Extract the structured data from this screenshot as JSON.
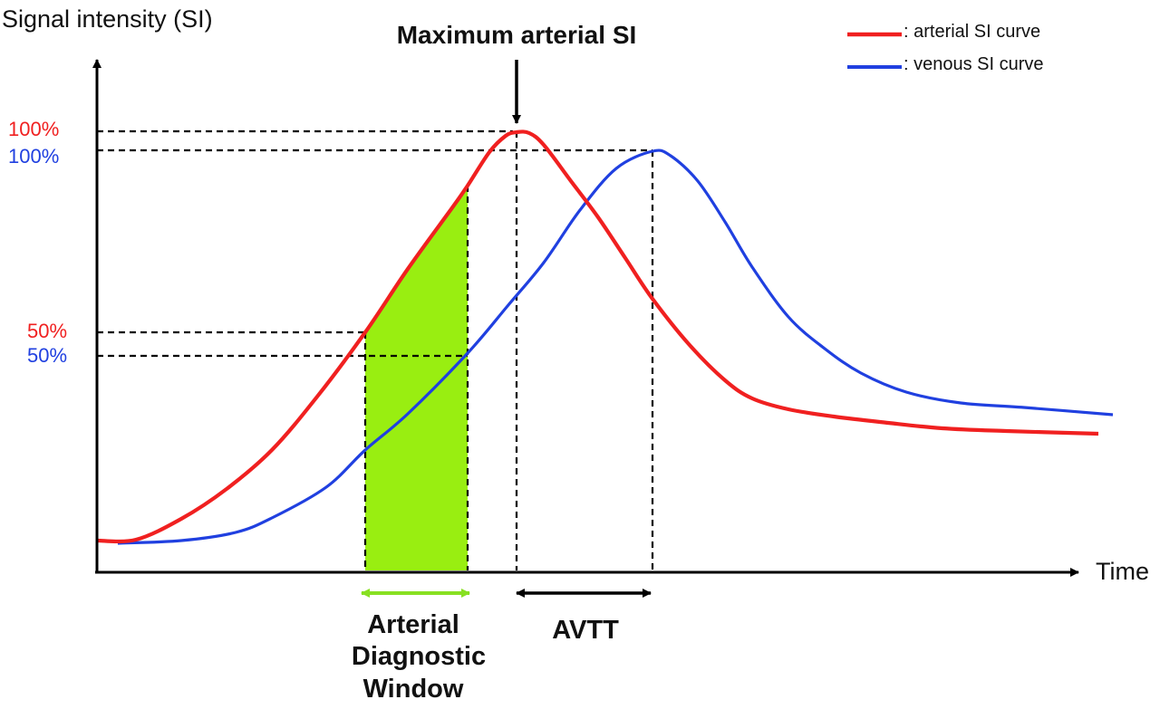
{
  "axes": {
    "y_label": "Signal intensity (SI)",
    "x_label": "Time"
  },
  "legend": {
    "arterial_label": ": arterial SI curve",
    "venous_label": ": venous SI curve"
  },
  "labels": {
    "arterial_100": "100%",
    "venous_100": "100%",
    "arterial_50": "50%",
    "venous_50": "50%",
    "max_arterial": "Maximum arterial SI",
    "window_line1": "Arterial",
    "window_line2": "Diagnostic",
    "window_line3": "Window",
    "avtt": "AVTT"
  },
  "colors": {
    "arterial": "#f02020",
    "venous": "#2040e0",
    "window_fill": "#99ee11",
    "window_arrow": "#88e022",
    "axis": "#000000",
    "text": "#111111"
  }
}
